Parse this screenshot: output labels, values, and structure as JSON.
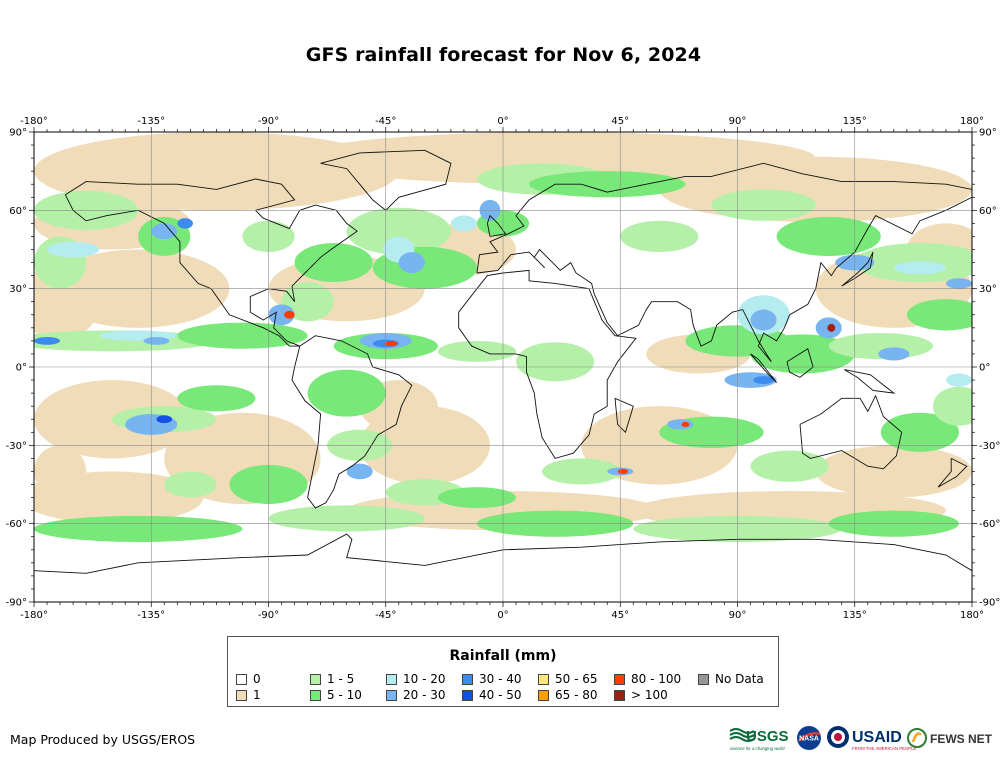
{
  "title": "GFS rainfall forecast for Nov 6, 2024",
  "map": {
    "lon_ticks": [
      "-180°",
      "-135°",
      "-90°",
      "-45°",
      "0°",
      "45°",
      "90°",
      "135°",
      "180°"
    ],
    "lat_ticks": [
      "90°",
      "60°",
      "30°",
      "0°",
      "-30°",
      "-60°",
      "-90°"
    ],
    "grid": true
  },
  "legend": {
    "title": "Rainfall (mm)",
    "items": [
      {
        "label": "0",
        "color": "#ffffff"
      },
      {
        "label": "1",
        "color": "#f0dcb8"
      },
      {
        "label": "1 - 5",
        "color": "#b4f0a8"
      },
      {
        "label": "5 - 10",
        "color": "#78e878"
      },
      {
        "label": "10 - 20",
        "color": "#b4ecf0"
      },
      {
        "label": "20 - 30",
        "color": "#78b4f0"
      },
      {
        "label": "30 - 40",
        "color": "#3c8cf0"
      },
      {
        "label": "40 - 50",
        "color": "#1450e6"
      },
      {
        "label": "50 - 65",
        "color": "#ffe678"
      },
      {
        "label": "65 - 80",
        "color": "#ffa000"
      },
      {
        "label": "80 - 100",
        "color": "#ff3c00"
      },
      {
        "label": "> 100",
        "color": "#a01e14"
      },
      {
        "label": "No Data",
        "color": "#969696"
      }
    ]
  },
  "credit": "Map Produced by USGS/EROS",
  "logos": {
    "usgs": "USGS",
    "usgs_tagline": "science for a changing world",
    "nasa": "NASA",
    "usaid": "USAID",
    "usaid_tagline": "FROM THE AMERICAN PEOPLE",
    "fewsnet": "FEWS NET"
  }
}
